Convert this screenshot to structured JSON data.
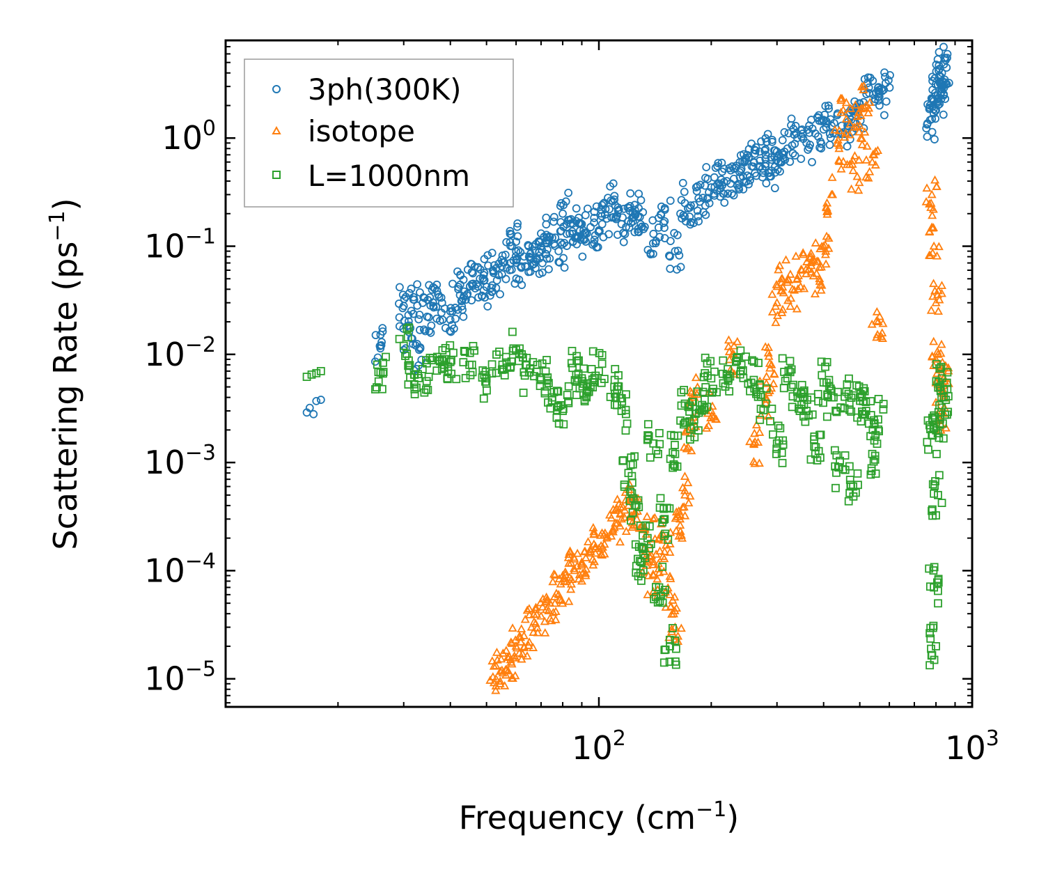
{
  "chart_data": {
    "type": "scatter",
    "xscale": "log",
    "yscale": "log",
    "xlim": [
      10,
      1000
    ],
    "ylim": [
      5.5e-06,
      8
    ],
    "xlabel": "Frequency (cm",
    "xlabel_sup": "−1",
    "xlabel_end": ")",
    "ylabel": "Scattering Rate (ps",
    "ylabel_sup": "−1",
    "ylabel_end": ")",
    "x_ticks": [
      {
        "value": 100,
        "base": "10",
        "exp": "2"
      },
      {
        "value": 1000,
        "base": "10",
        "exp": "3"
      }
    ],
    "y_ticks": [
      {
        "value": 1,
        "base": "10",
        "exp": "0"
      },
      {
        "value": 0.1,
        "base": "10",
        "exp": "−1"
      },
      {
        "value": 0.01,
        "base": "10",
        "exp": "−2"
      },
      {
        "value": 0.001,
        "base": "10",
        "exp": "−3"
      },
      {
        "value": 0.0001,
        "base": "10",
        "exp": "−4"
      },
      {
        "value": 1e-05,
        "base": "10",
        "exp": "−5"
      }
    ],
    "legend_position": "top-left",
    "series": [
      {
        "name": "3ph(300K)",
        "color": "#1f77b4",
        "marker": "circle",
        "x": [
          16.5,
          16.8,
          17.2,
          17.5,
          18.0,
          26,
          30,
          31,
          32,
          33,
          35,
          36,
          38,
          40,
          42,
          44,
          46,
          48,
          50,
          52,
          55,
          58,
          60,
          62,
          65,
          68,
          70,
          72,
          75,
          78,
          80,
          85,
          88,
          90,
          95,
          100,
          105,
          110,
          115,
          120,
          125,
          130,
          140,
          150,
          160,
          170,
          180,
          190,
          200,
          210,
          220,
          230,
          240,
          250,
          260,
          270,
          280,
          290,
          300,
          320,
          340,
          360,
          380,
          400,
          420,
          450,
          480,
          500,
          530,
          560,
          580,
          780,
          790,
          800,
          810,
          820,
          830,
          840
        ],
        "values": [
          0.0029,
          0.0032,
          0.0028,
          0.0037,
          0.0038,
          0.012,
          0.028,
          0.016,
          0.032,
          0.011,
          0.022,
          0.028,
          0.03,
          0.025,
          0.04,
          0.032,
          0.045,
          0.05,
          0.042,
          0.06,
          0.055,
          0.07,
          0.11,
          0.065,
          0.08,
          0.075,
          0.1,
          0.085,
          0.12,
          0.09,
          0.2,
          0.13,
          0.12,
          0.16,
          0.15,
          0.14,
          0.18,
          0.27,
          0.16,
          0.17,
          0.2,
          0.15,
          0.13,
          0.17,
          0.09,
          0.25,
          0.24,
          0.28,
          0.35,
          0.38,
          0.4,
          0.42,
          0.5,
          0.45,
          0.6,
          0.55,
          0.7,
          0.5,
          0.75,
          0.8,
          1.0,
          0.9,
          1.1,
          1.2,
          1.3,
          1.1,
          1.4,
          1.9,
          2.6,
          2.4,
          2.8,
          1.5,
          2.2,
          1.8,
          2.5,
          3.2,
          4.0,
          4.8
        ]
      },
      {
        "name": "isotope",
        "color": "#ff7f0e",
        "marker": "triangle",
        "x": [
          53,
          55,
          58,
          60,
          63,
          66,
          70,
          74,
          78,
          82,
          86,
          90,
          95,
          100,
          105,
          110,
          115,
          120,
          125,
          130,
          135,
          140,
          145,
          150,
          155,
          160,
          165,
          170,
          175,
          180,
          200,
          230,
          260,
          280,
          290,
          300,
          310,
          330,
          350,
          370,
          390,
          400,
          420,
          440,
          460,
          480,
          500,
          520,
          540,
          560,
          780,
          790,
          800,
          810,
          820,
          830,
          840
        ],
        "values": [
          1e-05,
          1.2e-05,
          1.5e-05,
          2e-05,
          2.5e-05,
          3e-05,
          3.8e-05,
          5e-05,
          6e-05,
          8e-05,
          0.0001,
          0.00012,
          0.00015,
          0.00016,
          0.0002,
          0.00025,
          0.0003,
          0.0004,
          0.00035,
          0.00025,
          0.00012,
          9e-05,
          0.0002,
          0.00015,
          6e-05,
          3e-05,
          0.0003,
          0.0005,
          0.002,
          0.004,
          0.003,
          0.01,
          0.0015,
          0.004,
          0.008,
          0.03,
          0.05,
          0.04,
          0.06,
          0.08,
          0.05,
          0.1,
          0.3,
          0.8,
          1.5,
          0.5,
          1.3,
          2.0,
          0.6,
          0.02,
          0.3,
          0.1,
          0.03,
          0.01,
          0.005,
          0.003,
          0.006
        ]
      },
      {
        "name": "L=1000nm",
        "color": "#2ca02c",
        "marker": "square",
        "x": [
          16.5,
          17.0,
          17.5,
          18.0,
          26,
          30,
          32,
          35,
          38,
          40,
          45,
          50,
          55,
          60,
          65,
          70,
          75,
          80,
          85,
          90,
          95,
          100,
          110,
          115,
          120,
          125,
          130,
          135,
          140,
          145,
          150,
          155,
          160,
          170,
          180,
          190,
          200,
          220,
          240,
          260,
          280,
          300,
          320,
          340,
          360,
          380,
          400,
          420,
          440,
          460,
          480,
          500,
          520,
          540,
          560,
          780,
          790,
          800,
          810,
          820,
          830,
          840
        ],
        "values": [
          0.0062,
          0.0065,
          0.0067,
          0.007,
          0.0068,
          0.012,
          0.0065,
          0.0062,
          0.009,
          0.0085,
          0.008,
          0.006,
          0.0072,
          0.011,
          0.0068,
          0.0058,
          0.004,
          0.003,
          0.0075,
          0.006,
          0.005,
          0.007,
          0.005,
          0.003,
          0.0008,
          0.0004,
          0.00012,
          0.0002,
          0.0015,
          7e-05,
          0.0003,
          2e-05,
          0.0012,
          0.0035,
          0.0025,
          0.0045,
          0.006,
          0.0065,
          0.007,
          0.0058,
          0.0035,
          0.0015,
          0.006,
          0.0045,
          0.003,
          0.0012,
          0.0055,
          0.004,
          0.0009,
          0.0045,
          0.0006,
          0.004,
          0.003,
          0.0012,
          0.0025,
          0.0018,
          7e-05,
          2e-05,
          0.0005,
          0.0025,
          0.006,
          0.004
        ]
      }
    ]
  }
}
